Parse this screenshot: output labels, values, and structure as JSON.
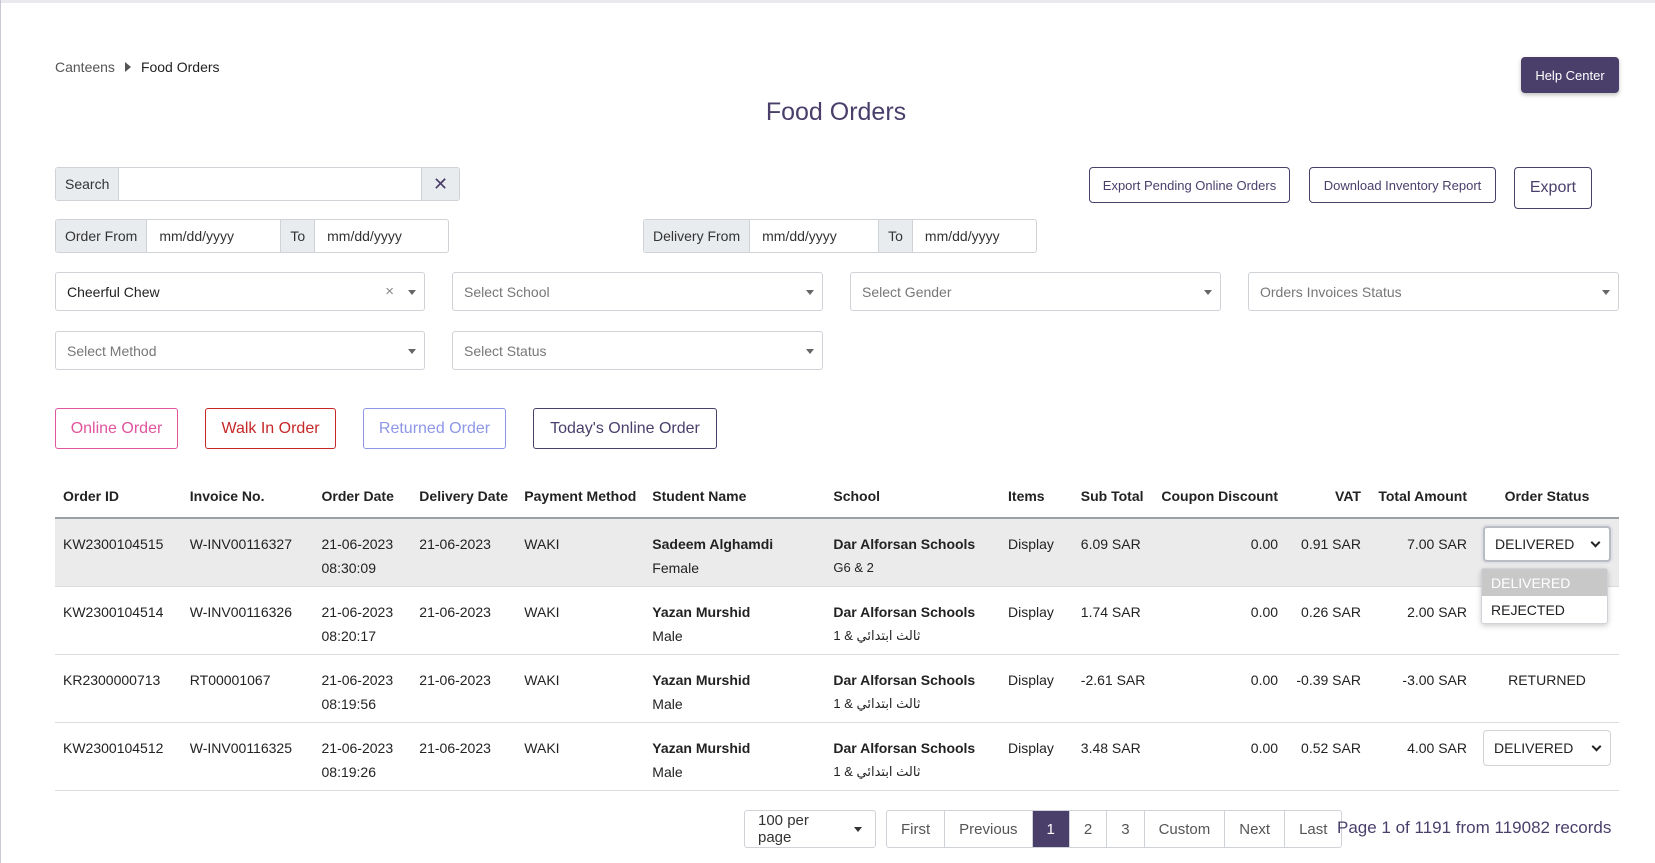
{
  "breadcrumb": {
    "parent": "Canteens",
    "current": "Food Orders"
  },
  "help_button": "Help Center",
  "page_title": "Food Orders",
  "search": {
    "label": "Search",
    "value": "",
    "clear": "✕"
  },
  "exports": {
    "pending": "Export Pending Online Orders",
    "inventory": "Download Inventory Report",
    "export": "Export"
  },
  "order_dates": {
    "from_label": "Order From",
    "from_placeholder": "mm/dd/yyyy",
    "to_label": "To",
    "to_placeholder": "mm/dd/yyyy"
  },
  "delivery_dates": {
    "from_label": "Delivery From",
    "from_placeholder": "mm/dd/yyyy",
    "to_label": "To",
    "to_placeholder": "mm/dd/yyyy"
  },
  "filters": {
    "canteen": "Cheerful Chew",
    "canteen_clear": "×",
    "school": "Select School",
    "gender": "Select Gender",
    "invoice_status": "Orders Invoices Status",
    "method": "Select Method",
    "status": "Select Status"
  },
  "order_types": {
    "online": "Online Order",
    "walkin": "Walk In Order",
    "returned": "Returned Order",
    "today": "Today's Online Order"
  },
  "colors": {
    "accent": "#4a3f6b",
    "online": "#e0559b",
    "walkin": "#c62828",
    "returned": "#8e96e8"
  },
  "table": {
    "headers": [
      "Order ID",
      "Invoice No.",
      "Order Date",
      "Delivery Date",
      "Payment Method",
      "Student Name",
      "School",
      "Items",
      "Sub Total",
      "Coupon Discount",
      "VAT",
      "Total Amount",
      "Order Status"
    ],
    "rows": [
      {
        "order_id": "KW2300104515",
        "invoice": "W-INV00116327",
        "order_date": "21-06-2023",
        "order_time": "08:30:09",
        "delivery_date": "21-06-2023",
        "payment": "WAKI",
        "student": "Sadeem Alghamdi",
        "gender": "Female",
        "school": "Dar Alforsan Schools",
        "grade": "G6 & 2",
        "items": "Display",
        "subtotal": "6.09 SAR",
        "coupon": "0.00",
        "vat": "0.91 SAR",
        "total": "7.00 SAR",
        "status": "DELIVERED"
      },
      {
        "order_id": "KW2300104514",
        "invoice": "W-INV00116326",
        "order_date": "21-06-2023",
        "order_time": "08:20:17",
        "delivery_date": "21-06-2023",
        "payment": "WAKI",
        "student": "Yazan Murshid",
        "gender": "Male",
        "school": "Dar Alforsan Schools",
        "grade": "ثالث ابتدائي & 1",
        "items": "Display",
        "subtotal": "1.74 SAR",
        "coupon": "0.00",
        "vat": "0.26 SAR",
        "total": "2.00 SAR",
        "status": ""
      },
      {
        "order_id": "KR2300000713",
        "invoice": "RT00001067",
        "order_date": "21-06-2023",
        "order_time": "08:19:56",
        "delivery_date": "21-06-2023",
        "payment": "WAKI",
        "student": "Yazan Murshid",
        "gender": "Male",
        "school": "Dar Alforsan Schools",
        "grade": "ثالث ابتدائي & 1",
        "items": "Display",
        "subtotal": "-2.61 SAR",
        "coupon": "0.00",
        "vat": "-0.39 SAR",
        "total": "-3.00 SAR",
        "status": "RETURNED"
      },
      {
        "order_id": "KW2300104512",
        "invoice": "W-INV00116325",
        "order_date": "21-06-2023",
        "order_time": "08:19:26",
        "delivery_date": "21-06-2023",
        "payment": "WAKI",
        "student": "Yazan Murshid",
        "gender": "Male",
        "school": "Dar Alforsan Schools",
        "grade": "ثالث ابتدائي & 1",
        "items": "Display",
        "subtotal": "3.48 SAR",
        "coupon": "0.00",
        "vat": "0.52 SAR",
        "total": "4.00 SAR",
        "status": "DELIVERED"
      }
    ]
  },
  "status_menu": {
    "options": [
      "DELIVERED",
      "REJECTED"
    ],
    "selected": "DELIVERED"
  },
  "pagination": {
    "per_page": "100 per page",
    "first": "First",
    "previous": "Previous",
    "pages": [
      "1",
      "2",
      "3"
    ],
    "current": "1",
    "custom": "Custom",
    "next": "Next",
    "last": "Last",
    "info": "Page 1 of 1191 from 119082 records"
  }
}
